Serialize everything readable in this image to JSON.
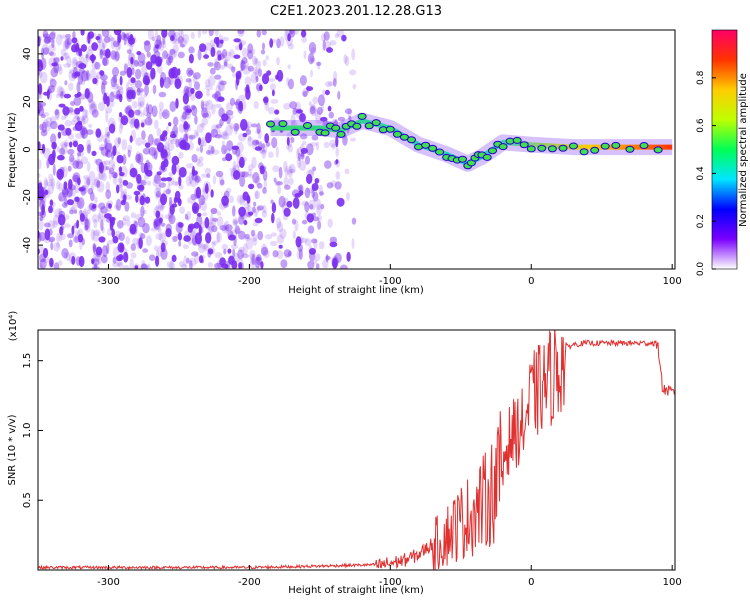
{
  "title": "C2E1.2023.201.12.28.G13",
  "colors": {
    "snr_line": "#e03030",
    "noise": "#7a2cf0",
    "signal_green": "#3fe04a",
    "colorbar_stops": [
      "#ffffff",
      "#7a00ff",
      "#0000ff",
      "#00e5ff",
      "#00ff55",
      "#bfff00",
      "#ffcc00",
      "#ff3300",
      "#ff0066"
    ]
  },
  "chart_data": [
    {
      "type": "heatmap",
      "id": "spectrogram",
      "xlabel": "Height of straight line (km)",
      "ylabel": "Frequency (Hz)",
      "xlim": [
        -350,
        102
      ],
      "ylim": [
        -50,
        50
      ],
      "x_ticks": [
        -300,
        -200,
        -100,
        0,
        100
      ],
      "y_ticks": [
        -40,
        -20,
        0,
        20,
        40
      ],
      "colorbar": {
        "label": "Normalized spectral amplitude",
        "range": [
          0,
          1
        ],
        "ticks": [
          "0.0",
          "0.2",
          "0.4",
          "0.6",
          "0.8"
        ]
      },
      "noise_region": {
        "x": [
          -350,
          -125
        ],
        "y": [
          -50,
          50
        ]
      },
      "signal_trace": {
        "x": [
          -185,
          -150,
          -135,
          -120,
          -100,
          -80,
          -60,
          -45,
          -35,
          -20,
          0,
          30,
          60,
          100
        ],
        "y": [
          9,
          9,
          8,
          12,
          9,
          2,
          -2,
          -6,
          -3,
          3,
          2,
          1,
          1,
          1
        ]
      }
    },
    {
      "type": "line",
      "id": "snr",
      "xlabel": "Height of straight line (km)",
      "ylabel": "SNR (10 * v/v)",
      "y_multiplier": "(x10⁴)",
      "xlim": [
        -350,
        102
      ],
      "ylim": [
        0,
        1.72
      ],
      "x_ticks": [
        -300,
        -200,
        -100,
        0,
        100
      ],
      "y_ticks": [
        0.5,
        1.0,
        1.5
      ],
      "series": [
        {
          "x": [
            -350,
            -200,
            -150,
            -110,
            -100,
            -90,
            -80,
            -70,
            -60,
            -50,
            -40,
            -30,
            -25,
            -20,
            -15,
            -10,
            -5,
            0,
            10,
            20,
            25,
            30,
            40,
            50,
            60,
            70,
            80,
            88,
            90,
            92,
            93,
            95,
            100,
            102
          ],
          "y": [
            0.02,
            0.02,
            0.03,
            0.04,
            0.06,
            0.08,
            0.12,
            0.2,
            0.3,
            0.4,
            0.48,
            0.6,
            0.7,
            0.85,
            1.0,
            1.05,
            1.1,
            1.3,
            1.4,
            1.55,
            1.6,
            1.62,
            1.63,
            1.63,
            1.63,
            1.63,
            1.63,
            1.63,
            1.6,
            1.45,
            1.3,
            1.3,
            1.28,
            1.27
          ]
        }
      ]
    }
  ]
}
